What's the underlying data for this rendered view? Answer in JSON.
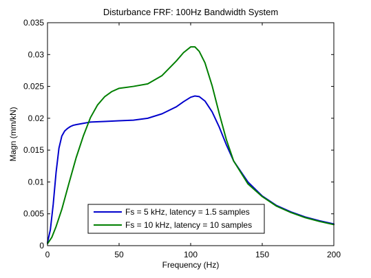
{
  "chart_data": {
    "type": "line",
    "title": "Disturbance FRF: 100Hz Bandwidth System",
    "xlabel": "Frequency (Hz)",
    "ylabel": "Magn (mm/kN)",
    "xlim": [
      0,
      200
    ],
    "ylim": [
      0,
      0.035
    ],
    "xticks": [
      0,
      50,
      100,
      150,
      200
    ],
    "xtick_labels": [
      "0",
      "50",
      "100",
      "150",
      "200"
    ],
    "yticks": [
      0,
      0.005,
      0.01,
      0.015,
      0.02,
      0.025,
      0.03,
      0.035
    ],
    "ytick_labels": [
      "0",
      "0.005",
      "0.01",
      "0.015",
      "0.02",
      "0.025",
      "0.03",
      "0.035"
    ],
    "grid": false,
    "legend_position": "bottom-center",
    "series": [
      {
        "name": "Fs = 5 kHz, latency = 1.5 samples",
        "color": "#0000cc",
        "x": [
          0,
          2,
          4,
          6,
          8,
          10,
          12,
          14,
          16,
          18,
          20,
          25,
          30,
          40,
          50,
          60,
          70,
          80,
          90,
          95,
          100,
          103,
          106,
          110,
          115,
          120,
          125,
          130,
          140,
          150,
          160,
          170,
          180,
          190,
          200
        ],
        "y": [
          0.0005,
          0.0025,
          0.0065,
          0.0115,
          0.0153,
          0.0172,
          0.018,
          0.0184,
          0.0187,
          0.0189,
          0.019,
          0.0192,
          0.0194,
          0.0195,
          0.0196,
          0.0197,
          0.02,
          0.0207,
          0.0218,
          0.0226,
          0.0233,
          0.0235,
          0.0234,
          0.0227,
          0.021,
          0.0186,
          0.0158,
          0.0133,
          0.01,
          0.0078,
          0.0063,
          0.0053,
          0.0045,
          0.0039,
          0.0034
        ]
      },
      {
        "name": "Fs = 10 kHz, latency = 10 samples",
        "color": "#007f00",
        "x": [
          0,
          3,
          6,
          10,
          15,
          20,
          25,
          30,
          35,
          40,
          45,
          50,
          60,
          70,
          80,
          90,
          95,
          100,
          103,
          106,
          110,
          115,
          120,
          125,
          130,
          140,
          150,
          160,
          170,
          180,
          190,
          200
        ],
        "y": [
          0.0003,
          0.0013,
          0.003,
          0.0057,
          0.0098,
          0.0138,
          0.0172,
          0.0201,
          0.0221,
          0.0234,
          0.0242,
          0.0247,
          0.025,
          0.0254,
          0.0267,
          0.029,
          0.0303,
          0.0312,
          0.0312,
          0.0305,
          0.0287,
          0.0251,
          0.0207,
          0.0166,
          0.0133,
          0.0097,
          0.0077,
          0.0062,
          0.0052,
          0.0044,
          0.0038,
          0.0033
        ]
      }
    ]
  }
}
